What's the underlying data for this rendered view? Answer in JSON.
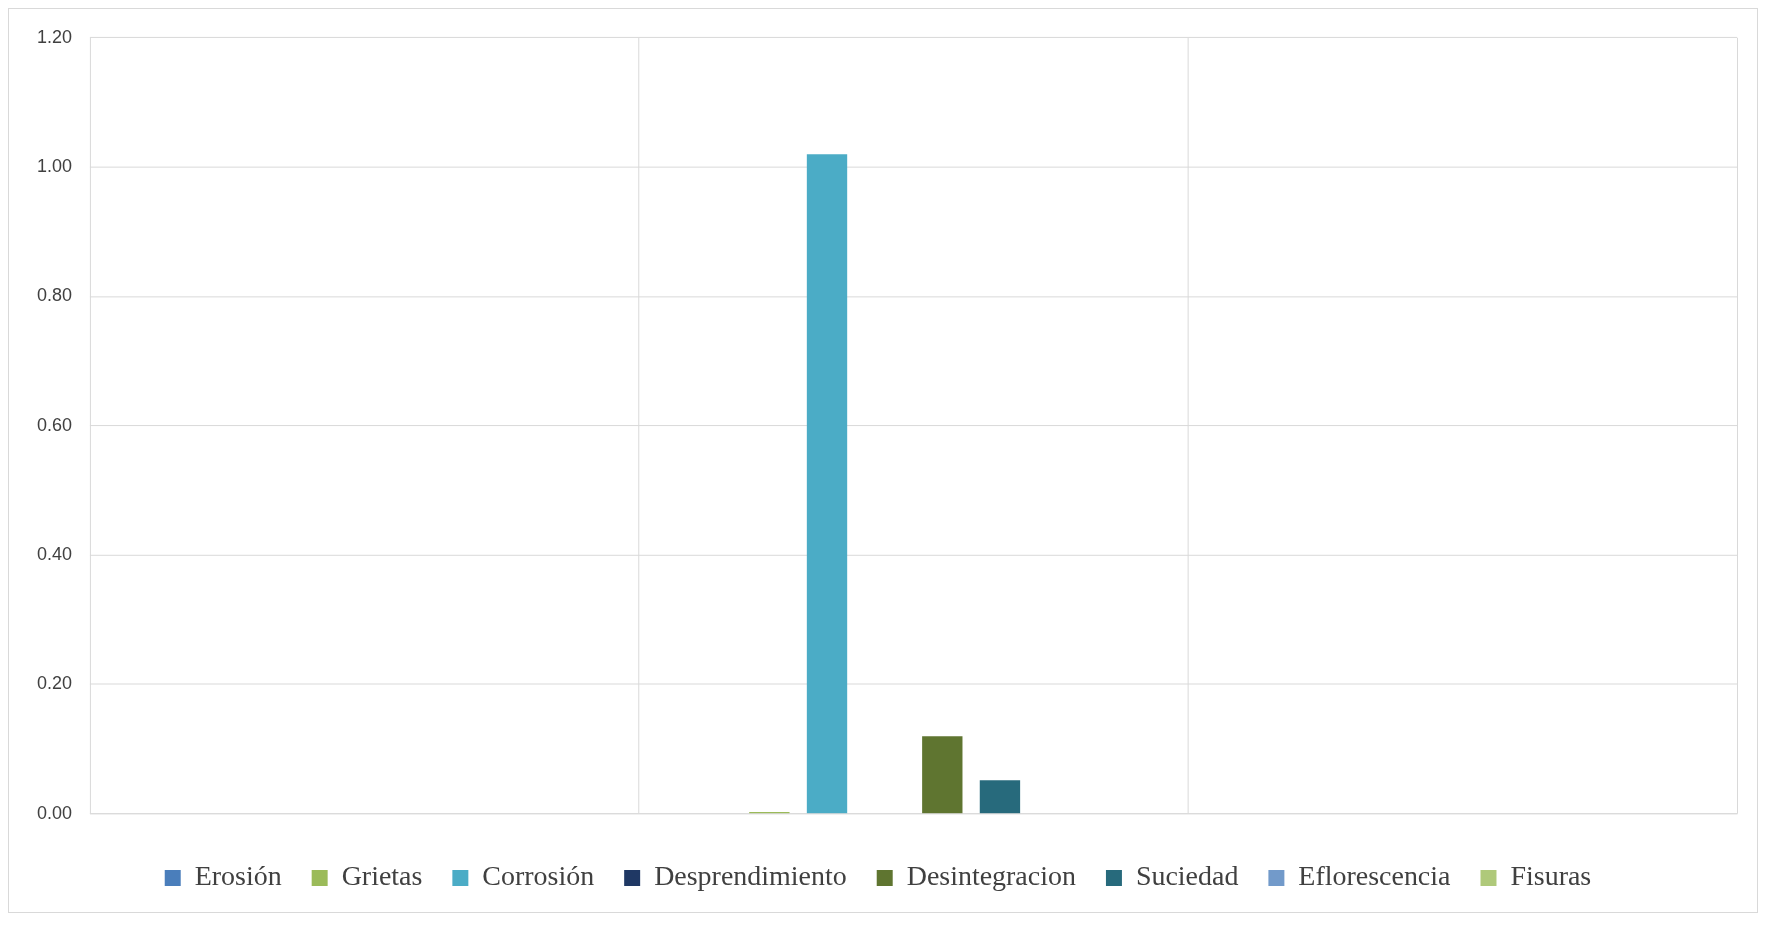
{
  "chart_data": {
    "type": "bar",
    "categories": [
      null,
      null,
      null
    ],
    "series": [
      {
        "name": "Erosión",
        "color": "#4a7ebb",
        "values": [
          null,
          0,
          null
        ]
      },
      {
        "name": "Grietas",
        "color": "#9bbb59",
        "values": [
          null,
          0.003,
          null
        ]
      },
      {
        "name": "Corrosión",
        "color": "#4bacc6",
        "values": [
          null,
          1.02,
          null
        ]
      },
      {
        "name": "Desprendimiento",
        "color": "#1f3864",
        "values": [
          null,
          0,
          null
        ]
      },
      {
        "name": "Desintegracion",
        "color": "#5f7530",
        "values": [
          null,
          0.12,
          null
        ]
      },
      {
        "name": "Suciedad",
        "color": "#276a7c",
        "values": [
          null,
          0.052,
          null
        ]
      },
      {
        "name": "Eflorescencia",
        "color": "#729aca",
        "values": [
          null,
          0,
          null
        ]
      },
      {
        "name": "Fisuras",
        "color": "#afc97a",
        "values": [
          null,
          0,
          null
        ]
      }
    ],
    "ylim": [
      0,
      1.2
    ],
    "yticks": [
      {
        "value": 0,
        "label": "0.00"
      },
      {
        "value": 0.2,
        "label": "0.20"
      },
      {
        "value": 0.4,
        "label": "0.40"
      },
      {
        "value": 0.6,
        "label": "0.60"
      },
      {
        "value": 0.8,
        "label": "0.80"
      },
      {
        "value": 1,
        "label": "1.00"
      },
      {
        "value": 1.2,
        "label": "1.20"
      }
    ],
    "grid": true,
    "legend": "bottom"
  }
}
